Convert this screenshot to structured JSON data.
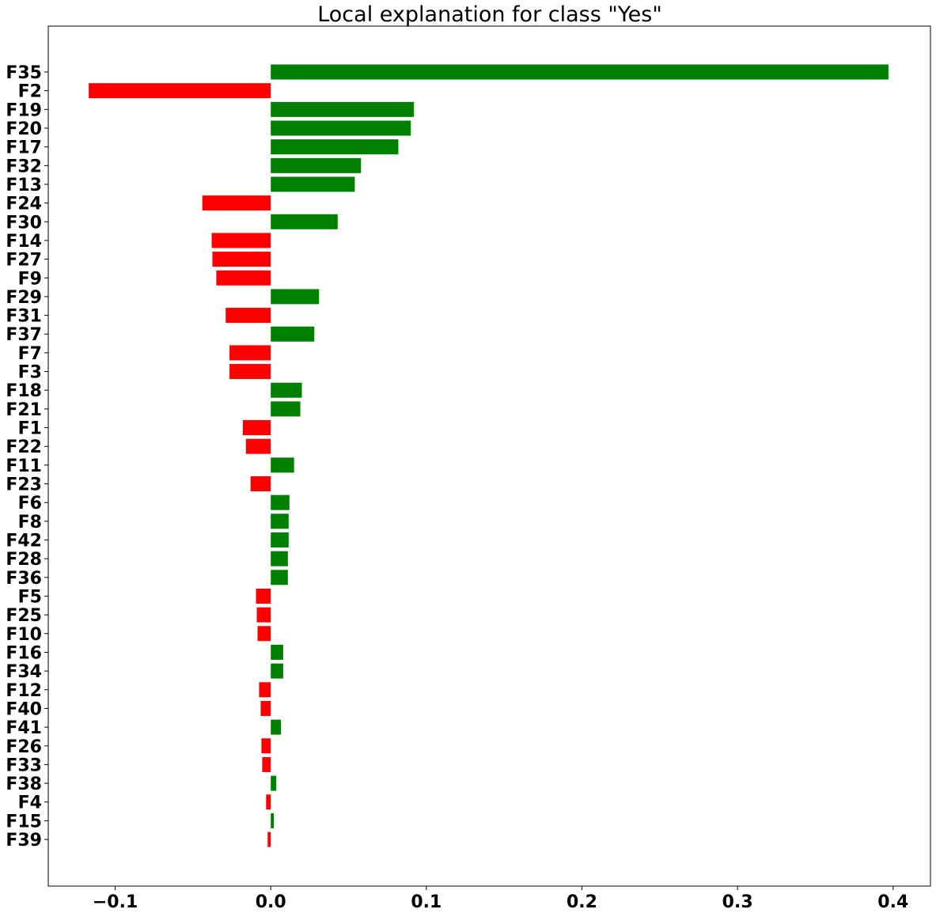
{
  "chart_data": {
    "type": "bar",
    "orientation": "horizontal",
    "title": "Local explanation for class \"Yes\"",
    "xlabel": "",
    "ylabel": "",
    "xlim": [
      -0.143,
      0.424
    ],
    "grid": false,
    "legend": "none",
    "x_ticks": [
      -0.1,
      0.0,
      0.1,
      0.2,
      0.3,
      0.4
    ],
    "x_tick_labels": [
      "−0.1",
      "0.0",
      "0.1",
      "0.2",
      "0.3",
      "0.4"
    ],
    "colors": {
      "positive": "#008000",
      "negative": "#ff0000"
    },
    "categories": [
      "F35",
      "F2",
      "F19",
      "F20",
      "F17",
      "F32",
      "F13",
      "F24",
      "F30",
      "F14",
      "F27",
      "F9",
      "F29",
      "F31",
      "F37",
      "F7",
      "F3",
      "F18",
      "F21",
      "F1",
      "F22",
      "F11",
      "F23",
      "F6",
      "F8",
      "F42",
      "F28",
      "F36",
      "F5",
      "F25",
      "F10",
      "F16",
      "F34",
      "F12",
      "F40",
      "F41",
      "F26",
      "F33",
      "F38",
      "F4",
      "F15",
      "F39"
    ],
    "values": [
      0.397,
      -0.117,
      0.092,
      0.09,
      0.082,
      0.058,
      0.054,
      -0.044,
      0.043,
      -0.038,
      -0.0375,
      -0.035,
      0.031,
      -0.029,
      0.028,
      -0.0265,
      -0.0265,
      0.02,
      0.019,
      -0.018,
      -0.016,
      0.015,
      -0.013,
      0.012,
      0.0115,
      0.0115,
      0.011,
      0.011,
      -0.0095,
      -0.009,
      -0.0085,
      0.008,
      0.008,
      -0.0075,
      -0.0065,
      0.0065,
      -0.006,
      -0.0055,
      0.0035,
      -0.003,
      0.002,
      -0.002
    ]
  }
}
